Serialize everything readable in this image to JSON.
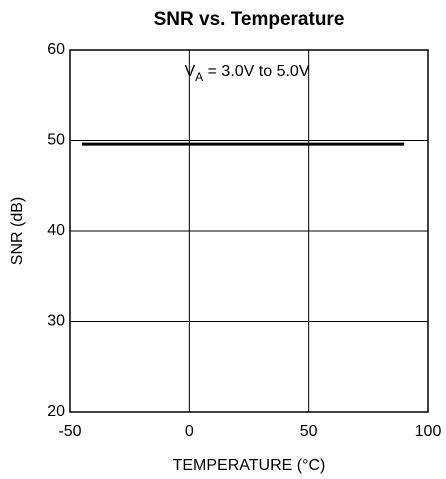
{
  "chart_data": {
    "type": "line",
    "title": "SNR vs. Temperature",
    "xlabel": "TEMPERATURE (°C)",
    "ylabel": "SNR (dB)",
    "annotation": [
      "V",
      "A",
      " = 3.0V to 5.0V"
    ],
    "x": [
      -45,
      90
    ],
    "series": [
      {
        "color": "#000000",
        "values": [
          49.6,
          49.6
        ]
      }
    ],
    "xlim": [
      -50,
      100
    ],
    "xticks": [
      -50,
      0,
      50,
      100
    ],
    "ylim": [
      20,
      60
    ],
    "yticks": [
      20,
      30,
      40,
      50,
      60
    ],
    "grid": true
  }
}
